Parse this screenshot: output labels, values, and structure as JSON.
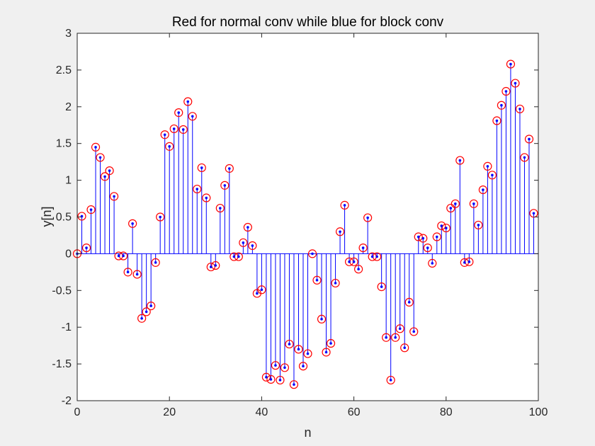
{
  "chart_data": {
    "type": "stem",
    "title": "Red for normal conv while blue for block conv",
    "xlabel": "n",
    "ylabel": "y[n]",
    "xlim": [
      0,
      100
    ],
    "ylim": [
      -2,
      3
    ],
    "xticks": [
      0,
      20,
      40,
      60,
      80,
      100
    ],
    "yticks": [
      -2,
      -1.5,
      -1,
      -0.5,
      0,
      0.5,
      1,
      1.5,
      2,
      2.5,
      3
    ],
    "grid": false,
    "legend": "none",
    "series": [
      {
        "marker": "circle",
        "color": "#ff0000",
        "x": [
          0,
          1,
          2,
          3,
          4,
          5,
          6,
          7,
          8,
          9,
          10,
          11,
          12,
          13,
          14,
          15,
          16,
          17,
          18,
          19,
          20,
          21,
          22,
          23,
          24,
          25,
          26,
          27,
          28,
          29,
          30,
          31,
          32,
          33,
          34,
          35,
          36,
          37,
          38,
          39,
          40,
          41,
          42,
          43,
          44,
          45,
          46,
          47,
          48,
          49,
          50,
          51,
          52,
          53,
          54,
          55,
          56,
          57,
          58,
          59,
          60,
          61,
          62,
          63,
          64,
          65,
          66,
          67,
          68,
          69,
          70,
          71,
          72,
          73,
          74,
          75,
          76,
          77,
          78,
          79,
          80,
          81,
          82,
          83,
          84,
          85,
          86,
          87,
          88,
          89,
          90,
          91,
          92,
          93,
          94,
          95,
          96,
          97,
          98,
          99
        ],
        "y": [
          0.0,
          0.51,
          0.08,
          0.6,
          1.45,
          1.31,
          1.05,
          1.13,
          0.78,
          -0.03,
          -0.03,
          -0.25,
          0.41,
          -0.28,
          -0.88,
          -0.79,
          -0.71,
          -0.12,
          0.5,
          1.62,
          1.46,
          1.7,
          1.92,
          1.69,
          2.07,
          1.87,
          0.88,
          1.17,
          0.76,
          -0.18,
          -0.16,
          0.62,
          0.93,
          1.16,
          -0.04,
          -0.04,
          0.15,
          0.36,
          0.11,
          -0.54,
          -0.49,
          -1.68,
          -1.71,
          -1.52,
          -1.72,
          -1.55,
          -1.23,
          -1.78,
          -1.3,
          -1.53,
          -1.36,
          0.0,
          -0.36,
          -0.89,
          -1.34,
          -1.22,
          -0.4,
          0.3,
          0.66,
          -0.11,
          -0.11,
          -0.21,
          0.08,
          0.49,
          -0.04,
          -0.04,
          -0.45,
          -1.14,
          -1.72,
          -1.14,
          -1.02,
          -1.28,
          -0.66,
          -1.06,
          0.23,
          0.21,
          0.08,
          -0.13,
          0.23,
          0.38,
          0.35,
          0.62,
          0.68,
          1.27,
          -0.12,
          -0.11,
          0.68,
          0.39,
          0.87,
          1.19,
          1.07,
          1.81,
          2.02,
          2.21,
          2.58,
          2.32,
          1.97,
          1.31,
          1.56,
          0.55
        ]
      },
      {
        "marker": "dot",
        "color": "#0000ff",
        "x": [
          0,
          1,
          2,
          3,
          4,
          5,
          6,
          7,
          8,
          9,
          10,
          11,
          12,
          13,
          14,
          15,
          16,
          17,
          18,
          19,
          20,
          21,
          22,
          23,
          24,
          25,
          26,
          27,
          28,
          29,
          30,
          31,
          32,
          33,
          34,
          35,
          36,
          37,
          38,
          39,
          40,
          41,
          42,
          43,
          44,
          45,
          46,
          47,
          48,
          49,
          50,
          51,
          52,
          53,
          54,
          55,
          56,
          57,
          58,
          59,
          60,
          61,
          62,
          63,
          64,
          65,
          66,
          67,
          68,
          69,
          70,
          71,
          72,
          73,
          74,
          75,
          76,
          77,
          78,
          79,
          80,
          81,
          82,
          83,
          84,
          85,
          86,
          87,
          88,
          89,
          90,
          91,
          92,
          93,
          94,
          95,
          96,
          97,
          98,
          99
        ],
        "y": [
          0.0,
          0.51,
          0.08,
          0.6,
          1.45,
          1.31,
          1.05,
          1.13,
          0.78,
          -0.03,
          -0.03,
          -0.25,
          0.41,
          -0.28,
          -0.88,
          -0.79,
          -0.71,
          -0.12,
          0.5,
          1.62,
          1.46,
          1.7,
          1.92,
          1.69,
          2.07,
          1.87,
          0.88,
          1.17,
          0.76,
          -0.18,
          -0.16,
          0.62,
          0.93,
          1.16,
          -0.04,
          -0.04,
          0.15,
          0.36,
          0.11,
          -0.54,
          -0.49,
          -1.68,
          -1.71,
          -1.52,
          -1.72,
          -1.55,
          -1.23,
          -1.78,
          -1.3,
          -1.53,
          -1.36,
          0.0,
          -0.36,
          -0.89,
          -1.34,
          -1.22,
          -0.4,
          0.3,
          0.66,
          -0.11,
          -0.11,
          -0.21,
          0.08,
          0.49,
          -0.04,
          -0.04,
          -0.45,
          -1.14,
          -1.72,
          -1.14,
          -1.02,
          -1.28,
          -0.66,
          -1.06,
          0.23,
          0.21,
          0.08,
          -0.13,
          0.23,
          0.38,
          0.35,
          0.62,
          0.68,
          1.27,
          -0.12,
          -0.11,
          0.68,
          0.39,
          0.87,
          1.19,
          1.07,
          1.81,
          2.02,
          2.21,
          2.58,
          2.32,
          1.97,
          1.31,
          1.56,
          0.55
        ]
      }
    ]
  }
}
